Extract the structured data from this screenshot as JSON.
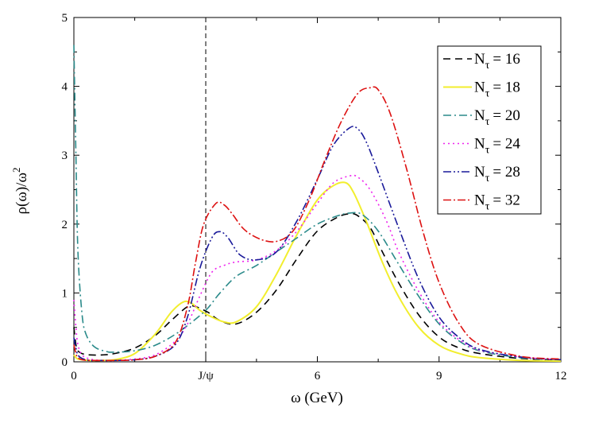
{
  "chart_data": {
    "type": "line",
    "title": "",
    "xlabel": "ω (GeV)",
    "ylabel": "ρ(ω)/ω²",
    "ylabel_main": "ρ(ω)/ω",
    "ylabel_sup": "2",
    "xlim": [
      0,
      12
    ],
    "ylim": [
      0,
      5
    ],
    "x_ticks": [
      0,
      6,
      9,
      12
    ],
    "x_tick_labels": [
      "0",
      "6",
      "9",
      "12"
    ],
    "x_marker": {
      "x": 3.25,
      "label": "J/ψ"
    },
    "y_ticks": [
      0,
      1,
      2,
      3,
      4,
      5
    ],
    "y_tick_labels": [
      "0",
      "1",
      "2",
      "3",
      "4",
      "5"
    ],
    "grid": false,
    "legend_position": "top-right",
    "series": [
      {
        "name": "Nτ = 16",
        "legend_base": "N",
        "legend_sub": "τ",
        "legend_value": "= 16",
        "color": "#000000",
        "dash": "9,6",
        "x": [
          0,
          0.05,
          0.1,
          0.2,
          0.4,
          0.7,
          1.0,
          1.5,
          2.0,
          2.4,
          2.8,
          3.0,
          3.3,
          3.6,
          4.0,
          4.5,
          5.0,
          5.5,
          6.0,
          6.5,
          6.8,
          7.0,
          7.3,
          7.6,
          8.0,
          8.5,
          9.0,
          9.5,
          10.0,
          11.0,
          12.0
        ],
        "y": [
          0.5,
          0.25,
          0.16,
          0.12,
          0.1,
          0.1,
          0.12,
          0.2,
          0.38,
          0.6,
          0.8,
          0.8,
          0.72,
          0.6,
          0.55,
          0.72,
          1.05,
          1.5,
          1.9,
          2.1,
          2.15,
          2.12,
          1.95,
          1.6,
          1.15,
          0.68,
          0.36,
          0.2,
          0.12,
          0.05,
          0.03
        ]
      },
      {
        "name": "Nτ = 18",
        "legend_base": "N",
        "legend_sub": "τ",
        "legend_value": "= 18",
        "color": "#f2ee2e",
        "dash": "",
        "x": [
          0,
          0.05,
          0.1,
          0.2,
          0.4,
          0.7,
          1.0,
          1.5,
          2.0,
          2.4,
          2.7,
          2.9,
          3.1,
          3.4,
          3.7,
          4.0,
          4.5,
          5.0,
          5.5,
          6.0,
          6.4,
          6.7,
          6.9,
          7.2,
          7.6,
          8.0,
          8.5,
          9.0,
          9.5,
          10.0,
          11.0,
          12.0
        ],
        "y": [
          0.1,
          0.06,
          0.04,
          0.03,
          0.02,
          0.02,
          0.03,
          0.12,
          0.4,
          0.72,
          0.87,
          0.85,
          0.75,
          0.65,
          0.58,
          0.58,
          0.8,
          1.28,
          1.85,
          2.35,
          2.56,
          2.6,
          2.45,
          2.05,
          1.45,
          0.95,
          0.5,
          0.24,
          0.12,
          0.06,
          0.02,
          0.01
        ]
      },
      {
        "name": "Nτ = 20",
        "legend_base": "N",
        "legend_sub": "τ",
        "legend_value": "= 20",
        "color": "#2a8a8a",
        "dash": "10,4,2,4",
        "x": [
          0,
          0.05,
          0.1,
          0.2,
          0.3,
          0.5,
          0.8,
          1.0,
          1.5,
          2.0,
          2.5,
          3.0,
          3.3,
          3.6,
          4.0,
          4.5,
          5.0,
          5.5,
          6.0,
          6.5,
          6.8,
          7.1,
          7.5,
          8.0,
          8.5,
          9.0,
          9.5,
          10.0,
          11.0,
          12.0
        ],
        "y": [
          4.6,
          3.0,
          1.6,
          0.7,
          0.4,
          0.22,
          0.15,
          0.14,
          0.16,
          0.24,
          0.4,
          0.62,
          0.78,
          1.0,
          1.24,
          1.4,
          1.6,
          1.8,
          2.0,
          2.12,
          2.16,
          2.14,
          1.9,
          1.42,
          0.95,
          0.55,
          0.3,
          0.16,
          0.06,
          0.03
        ]
      },
      {
        "name": "Nτ = 24",
        "legend_base": "N",
        "legend_sub": "τ",
        "legend_value": "= 24",
        "color": "#ee22ee",
        "dash": "2,4",
        "x": [
          0,
          0.05,
          0.1,
          0.2,
          0.4,
          0.7,
          1.0,
          1.5,
          2.0,
          2.5,
          2.8,
          3.1,
          3.4,
          3.7,
          4.0,
          4.5,
          5.0,
          5.5,
          6.0,
          6.4,
          6.8,
          7.0,
          7.3,
          7.7,
          8.0,
          8.5,
          9.0,
          9.5,
          10.0,
          11.0,
          12.0
        ],
        "y": [
          0.9,
          0.5,
          0.25,
          0.1,
          0.04,
          0.02,
          0.02,
          0.04,
          0.1,
          0.3,
          0.55,
          0.95,
          1.3,
          1.4,
          1.45,
          1.48,
          1.62,
          1.9,
          2.3,
          2.6,
          2.7,
          2.68,
          2.5,
          2.05,
          1.6,
          1.02,
          0.58,
          0.32,
          0.17,
          0.07,
          0.03
        ]
      },
      {
        "name": "Nτ = 28",
        "legend_base": "N",
        "legend_sub": "τ",
        "legend_value": "= 28",
        "color": "#1a1a9a",
        "dash": "10,3,2,3,2,3",
        "x": [
          0,
          0.05,
          0.1,
          0.2,
          0.4,
          0.7,
          1.0,
          1.5,
          2.0,
          2.5,
          2.8,
          3.1,
          3.4,
          3.6,
          3.8,
          4.1,
          4.5,
          5.0,
          5.5,
          6.0,
          6.4,
          6.8,
          7.0,
          7.2,
          7.5,
          8.0,
          8.5,
          9.0,
          9.5,
          10.0,
          11.0,
          12.0
        ],
        "y": [
          0.35,
          0.2,
          0.1,
          0.05,
          0.02,
          0.02,
          0.02,
          0.03,
          0.08,
          0.25,
          0.65,
          1.35,
          1.8,
          1.89,
          1.8,
          1.55,
          1.48,
          1.6,
          2.05,
          2.65,
          3.15,
          3.4,
          3.38,
          3.2,
          2.75,
          1.95,
          1.2,
          0.65,
          0.35,
          0.18,
          0.07,
          0.03
        ]
      },
      {
        "name": "Nτ = 32",
        "legend_base": "N",
        "legend_sub": "τ",
        "legend_value": "= 32",
        "color": "#dd1111",
        "dash": "10,3,2,3",
        "x": [
          0,
          0.05,
          0.1,
          0.2,
          0.4,
          0.7,
          1.0,
          1.5,
          2.0,
          2.5,
          2.8,
          3.0,
          3.2,
          3.5,
          3.7,
          3.9,
          4.2,
          4.6,
          5.0,
          5.4,
          5.8,
          6.2,
          6.6,
          7.0,
          7.3,
          7.5,
          7.8,
          8.2,
          8.6,
          9.0,
          9.5,
          10.0,
          11.0,
          12.0
        ],
        "y": [
          0.25,
          0.12,
          0.06,
          0.03,
          0.02,
          0.02,
          0.02,
          0.03,
          0.08,
          0.28,
          0.8,
          1.45,
          2.0,
          2.3,
          2.28,
          2.15,
          1.92,
          1.78,
          1.75,
          1.9,
          2.35,
          2.95,
          3.5,
          3.9,
          3.98,
          3.95,
          3.6,
          2.8,
          1.9,
          1.15,
          0.55,
          0.25,
          0.08,
          0.04
        ]
      }
    ]
  }
}
